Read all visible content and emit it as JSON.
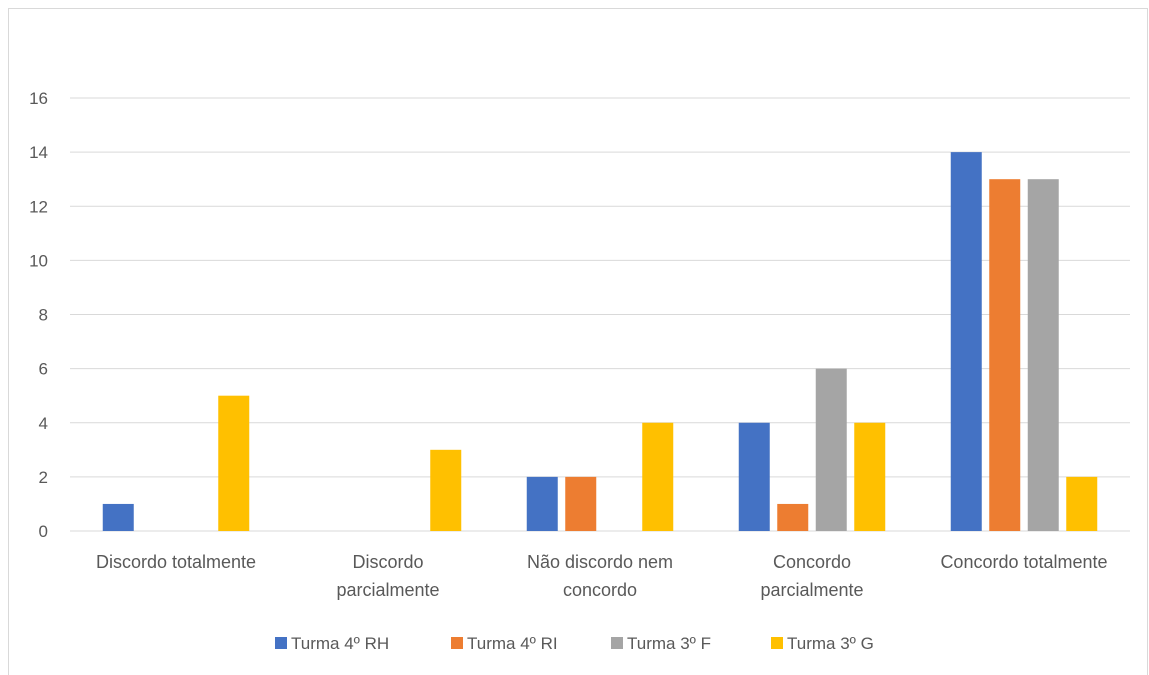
{
  "chart_data": {
    "type": "bar",
    "categories": [
      [
        "Discordo totalmente"
      ],
      [
        "Discordo",
        "parcialmente"
      ],
      [
        "Não discordo nem",
        "concordo"
      ],
      [
        "Concordo",
        "parcialmente"
      ],
      [
        "Concordo totalmente"
      ]
    ],
    "series": [
      {
        "name": "Turma 4º RH",
        "color": "#4472c4",
        "values": [
          1,
          0,
          2,
          4,
          14
        ]
      },
      {
        "name": "Turma 4º RI",
        "color": "#ed7d31",
        "values": [
          0,
          0,
          2,
          1,
          13
        ]
      },
      {
        "name": "Turma 3º F",
        "color": "#a5a5a5",
        "values": [
          0,
          0,
          0,
          6,
          13
        ]
      },
      {
        "name": "Turma 3º G",
        "color": "#ffc000",
        "values": [
          5,
          3,
          4,
          4,
          2
        ]
      }
    ],
    "ylim": [
      0,
      16
    ],
    "yticks": [
      0,
      2,
      4,
      6,
      8,
      10,
      12,
      14,
      16
    ],
    "grid": true,
    "legend_position": "bottom",
    "title": "",
    "xlabel": "",
    "ylabel": ""
  }
}
